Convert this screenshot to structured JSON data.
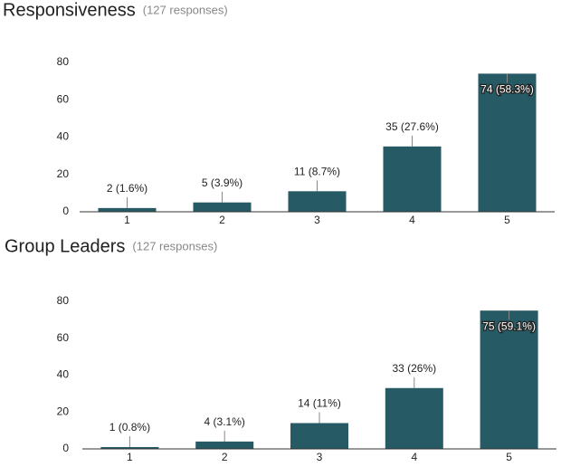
{
  "chart_data": [
    {
      "type": "bar",
      "title": "Responsiveness",
      "subtitle": "(127 responses)",
      "categories": [
        "1",
        "2",
        "3",
        "4",
        "5"
      ],
      "values": [
        2,
        5,
        11,
        35,
        74
      ],
      "value_labels": [
        "2 (1.6%)",
        "5 (3.9%)",
        "11 (8.7%)",
        "35 (27.6%)",
        "74 (58.3%)"
      ],
      "color": "#265a64",
      "ylim": [
        0,
        80
      ],
      "yticks": [
        0,
        20,
        40,
        60,
        80
      ],
      "grid": false
    },
    {
      "type": "bar",
      "title": "Group Leaders",
      "subtitle": "(127 responses)",
      "categories": [
        "1",
        "2",
        "3",
        "4",
        "5"
      ],
      "values": [
        1,
        4,
        14,
        33,
        75
      ],
      "value_labels": [
        "1 (0.8%)",
        "4 (3.1%)",
        "14 (11%)",
        "33 (26%)",
        "75 (59.1%)"
      ],
      "color": "#265a64",
      "ylim": [
        0,
        80
      ],
      "yticks": [
        0,
        20,
        40,
        60,
        80
      ],
      "grid": false
    }
  ]
}
